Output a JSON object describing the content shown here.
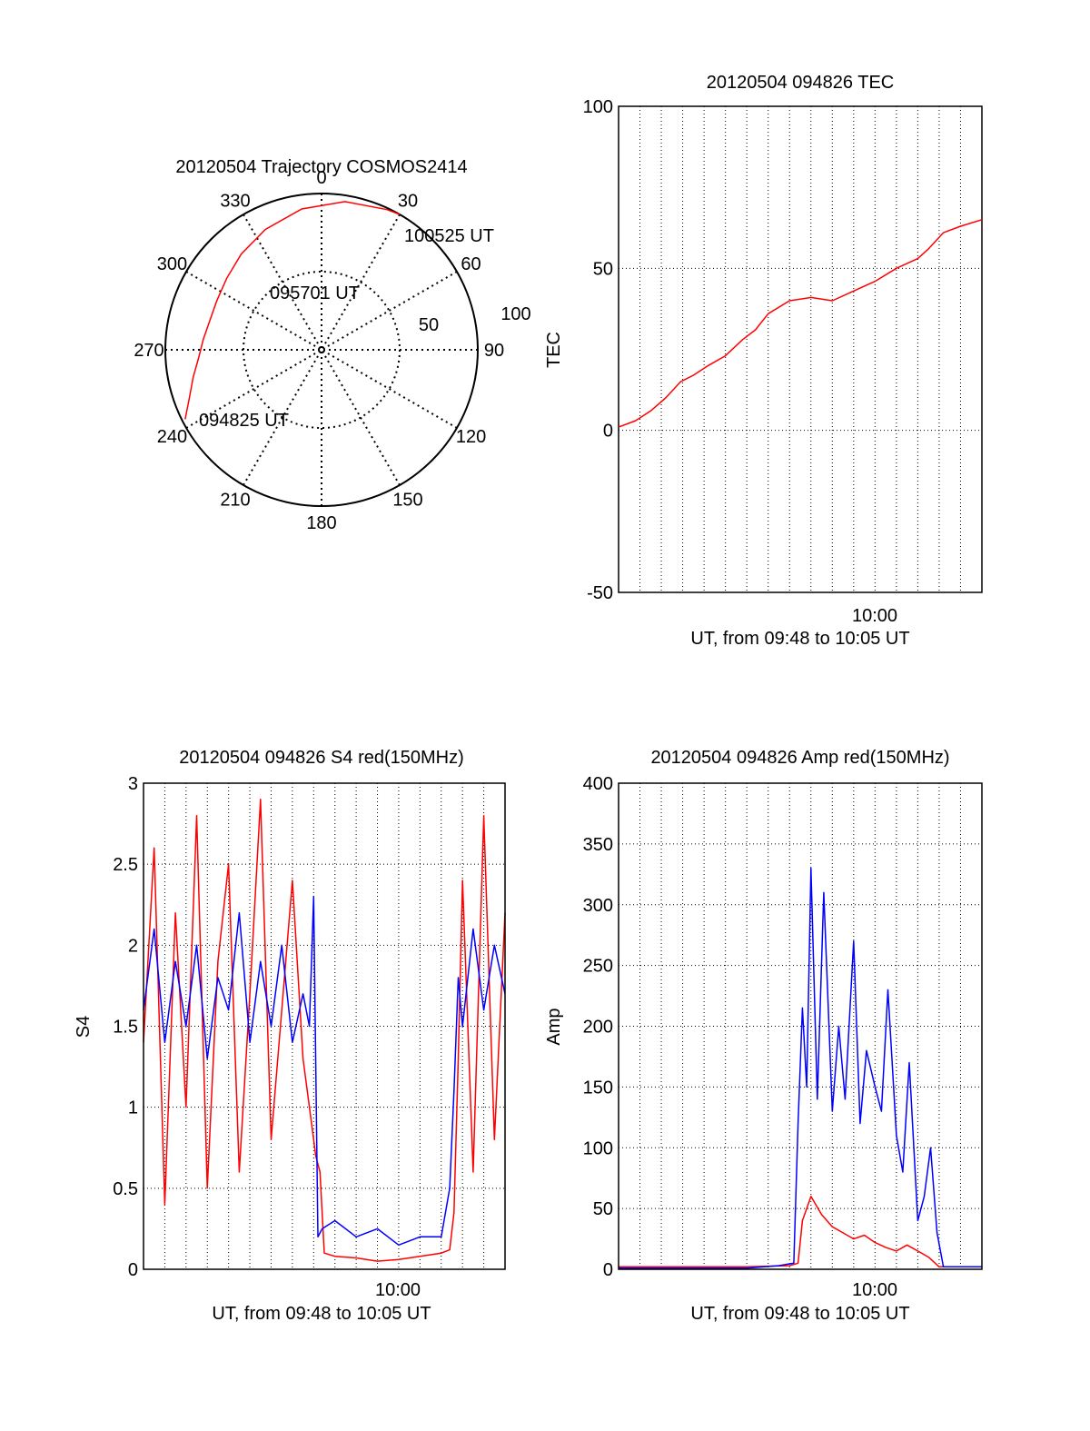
{
  "colors": {
    "red": "#ff0000",
    "blue": "#0000ff",
    "axis": "#000000",
    "grid": "#000000"
  },
  "chart_data": [
    {
      "id": "trajectory",
      "type": "scatter",
      "coordinate_system": "polar",
      "title": "20120504 Trajectory COSMOS2414",
      "azimuth_labels": [
        "0",
        "30",
        "60",
        "90",
        "120",
        "150",
        "180",
        "210",
        "240",
        "270",
        "300",
        "330"
      ],
      "radius_labels": [
        "50",
        "100"
      ],
      "annotations": [
        "100525 UT",
        "095701 UT",
        "094825 UT"
      ],
      "series": [
        {
          "color": "#ff0000",
          "azimuth_deg": [
            243,
            250,
            258,
            266,
            275,
            284,
            295,
            307,
            320,
            335,
            352,
            9,
            25,
            30
          ],
          "radius": [
            98,
            90,
            84,
            79,
            76,
            74,
            74,
            76,
            80,
            85,
            91,
            96,
            99,
            100
          ]
        }
      ]
    },
    {
      "id": "tec",
      "type": "line",
      "title": "20120504 094826 TEC",
      "xlabel": "UT, from 09:48 to 10:05 UT",
      "ylabel": "TEC",
      "x_tick_label": "10:00",
      "y_ticks": [
        "100",
        "50",
        "0",
        "-50"
      ],
      "xlim": [
        0,
        17
      ],
      "ylim": [
        -50,
        100
      ],
      "series": [
        {
          "color": "#ff0000",
          "x": [
            0,
            0.8,
            1.5,
            2.2,
            2.9,
            3.5,
            4.2,
            5.0,
            5.8,
            6.4,
            7.0,
            8.0,
            9.0,
            10.0,
            11.0,
            12.0,
            13.0,
            14.0,
            14.5,
            15.2,
            16.0,
            17.0
          ],
          "y": [
            1,
            3,
            6,
            10,
            15,
            17,
            20,
            23,
            28,
            31,
            36,
            40,
            41,
            40,
            43,
            46,
            50,
            53,
            56,
            61,
            63,
            65
          ]
        }
      ]
    },
    {
      "id": "s4",
      "type": "line",
      "title": "20120504 094826 S4 red(150MHz)",
      "xlabel": "UT, from 09:48 to 10:05 UT",
      "ylabel": "S4",
      "x_tick_label": "10:00",
      "y_ticks": [
        "3",
        "2.5",
        "2",
        "1.5",
        "1",
        "0.5",
        "0"
      ],
      "xlim": [
        0,
        17
      ],
      "ylim": [
        0,
        3
      ],
      "series": [
        {
          "color": "#ff0000",
          "x": [
            0,
            0.5,
            1.0,
            1.5,
            2.0,
            2.5,
            3.0,
            3.5,
            4.0,
            4.5,
            5.0,
            5.5,
            6.0,
            6.5,
            7.0,
            7.5,
            7.9,
            8.1,
            8.3,
            8.5,
            9.0,
            10.0,
            11.0,
            12.0,
            13.0,
            14.0,
            14.4,
            14.6,
            14.8,
            15.0,
            15.5,
            16.0,
            16.5,
            17.0
          ],
          "y": [
            1.4,
            2.6,
            0.4,
            2.2,
            1.0,
            2.8,
            0.5,
            1.9,
            2.5,
            0.6,
            1.7,
            2.9,
            0.8,
            1.6,
            2.4,
            1.3,
            0.9,
            0.7,
            0.6,
            0.1,
            0.08,
            0.07,
            0.05,
            0.06,
            0.08,
            0.1,
            0.12,
            0.35,
            1.3,
            2.4,
            0.6,
            2.8,
            0.8,
            2.2
          ]
        },
        {
          "color": "#0000ff",
          "x": [
            0,
            0.5,
            1.0,
            1.5,
            2.0,
            2.5,
            3.0,
            3.5,
            4.0,
            4.5,
            5.0,
            5.5,
            6.0,
            6.5,
            7.0,
            7.5,
            7.8,
            8.0,
            8.2,
            8.4,
            9.0,
            10.0,
            11.0,
            12.0,
            13.0,
            14.0,
            14.4,
            14.6,
            14.8,
            15.0,
            15.5,
            16.0,
            16.5,
            17.0
          ],
          "y": [
            1.6,
            2.1,
            1.4,
            1.9,
            1.5,
            2.0,
            1.3,
            1.8,
            1.6,
            2.2,
            1.4,
            1.9,
            1.5,
            2.0,
            1.4,
            1.7,
            1.5,
            2.3,
            0.2,
            0.25,
            0.3,
            0.2,
            0.25,
            0.15,
            0.2,
            0.2,
            0.5,
            1.1,
            1.8,
            1.5,
            2.1,
            1.6,
            2.0,
            1.7
          ]
        }
      ]
    },
    {
      "id": "amp",
      "type": "line",
      "title": "20120504 094826 Amp red(150MHz)",
      "xlabel": "UT, from 09:48 to 10:05 UT",
      "ylabel": "Amp",
      "x_tick_label": "10:00",
      "y_ticks": [
        "400",
        "350",
        "300",
        "250",
        "200",
        "150",
        "100",
        "50",
        "0"
      ],
      "xlim": [
        0,
        17
      ],
      "ylim": [
        0,
        400
      ],
      "series": [
        {
          "color": "#ff0000",
          "x": [
            0,
            2,
            4,
            6,
            8,
            8.4,
            8.6,
            9.0,
            9.5,
            10.0,
            10.5,
            11.0,
            11.5,
            12.0,
            12.5,
            13.0,
            13.5,
            14.0,
            14.5,
            15.0,
            16.0,
            17.0
          ],
          "y": [
            2,
            2,
            2,
            2,
            3,
            5,
            40,
            60,
            45,
            35,
            30,
            25,
            28,
            22,
            18,
            15,
            20,
            15,
            10,
            2,
            2,
            2
          ]
        },
        {
          "color": "#0000ff",
          "x": [
            0,
            2,
            4,
            6,
            7.5,
            8.2,
            8.4,
            8.6,
            8.8,
            9.0,
            9.3,
            9.6,
            10.0,
            10.3,
            10.6,
            11.0,
            11.3,
            11.6,
            12.0,
            12.3,
            12.6,
            13.0,
            13.3,
            13.6,
            14.0,
            14.3,
            14.6,
            14.9,
            15.2,
            16.0,
            17.0
          ],
          "y": [
            1,
            1,
            1,
            1,
            3,
            5,
            120,
            215,
            150,
            330,
            140,
            310,
            130,
            200,
            140,
            270,
            120,
            180,
            150,
            130,
            230,
            110,
            80,
            170,
            40,
            60,
            100,
            30,
            2,
            2,
            2
          ]
        }
      ]
    }
  ]
}
